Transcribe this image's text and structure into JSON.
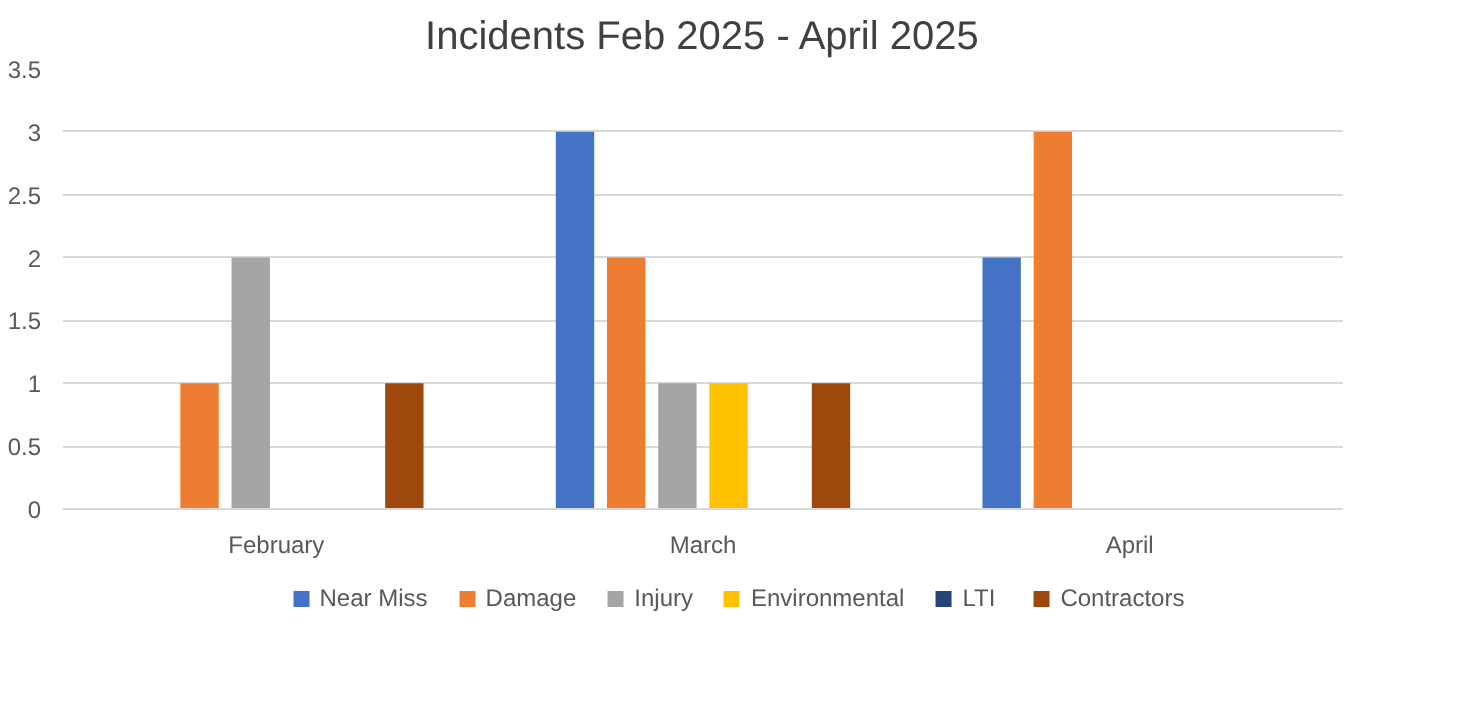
{
  "chart_data": {
    "type": "bar",
    "title": "Incidents Feb 2025 - April 2025",
    "categories": [
      "February",
      "March",
      "April"
    ],
    "series": [
      {
        "name": "Near Miss",
        "color": "#4472c4",
        "values": [
          0,
          3,
          2
        ]
      },
      {
        "name": "Damage",
        "color": "#ed7d31",
        "values": [
          1,
          2,
          3
        ]
      },
      {
        "name": "Injury",
        "color": "#a5a5a5",
        "values": [
          2,
          1,
          0
        ]
      },
      {
        "name": "Environmental",
        "color": "#ffc000",
        "values": [
          0,
          1,
          0
        ]
      },
      {
        "name": "LTI",
        "color": "#264478",
        "values": [
          0,
          0,
          0
        ]
      },
      {
        "name": "Contractors",
        "color": "#9e480e",
        "values": [
          1,
          1,
          0
        ]
      }
    ],
    "ylim": [
      0,
      3.5
    ],
    "yticks": [
      0,
      0.5,
      1,
      1.5,
      2,
      2.5,
      3,
      3.5
    ],
    "grid": "y",
    "legend": "bottom"
  }
}
